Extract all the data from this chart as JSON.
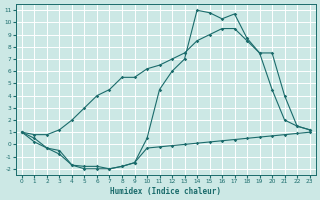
{
  "xlabel": "Humidex (Indice chaleur)",
  "background_color": "#cce8e5",
  "grid_color": "#ffffff",
  "line_color": "#1a6b6b",
  "xlim": [
    -0.5,
    23.5
  ],
  "ylim": [
    -2.5,
    11.5
  ],
  "xticks": [
    0,
    1,
    2,
    3,
    4,
    5,
    6,
    7,
    8,
    9,
    10,
    11,
    12,
    13,
    14,
    15,
    16,
    17,
    18,
    19,
    20,
    21,
    22,
    23
  ],
  "yticks": [
    -2,
    -1,
    0,
    1,
    2,
    3,
    4,
    5,
    6,
    7,
    8,
    9,
    10,
    11
  ],
  "line1_x": [
    0,
    1,
    2,
    3,
    4,
    5,
    6,
    7,
    8,
    9,
    10,
    11,
    12,
    13,
    14,
    15,
    16,
    17,
    18,
    19,
    20,
    21,
    22,
    23
  ],
  "line1_y": [
    1.0,
    0.2,
    -0.3,
    -0.5,
    -1.7,
    -1.8,
    -1.8,
    -2.0,
    -1.8,
    -1.5,
    -0.3,
    -0.2,
    -0.1,
    0.0,
    0.1,
    0.2,
    0.3,
    0.4,
    0.5,
    0.6,
    0.7,
    0.8,
    0.9,
    1.0
  ],
  "line2_x": [
    0,
    1,
    2,
    3,
    4,
    5,
    6,
    7,
    8,
    9,
    10,
    11,
    12,
    13,
    14,
    15,
    16,
    17,
    18,
    19,
    20,
    21,
    22,
    23
  ],
  "line2_y": [
    1.0,
    0.8,
    0.8,
    1.2,
    2.0,
    3.0,
    4.0,
    4.5,
    5.5,
    5.5,
    6.2,
    6.5,
    7.0,
    7.5,
    8.5,
    9.0,
    9.5,
    9.5,
    8.5,
    7.5,
    7.5,
    4.0,
    1.5,
    1.2
  ],
  "line3_x": [
    0,
    1,
    2,
    3,
    4,
    5,
    6,
    7,
    8,
    9,
    10,
    11,
    12,
    13,
    14,
    15,
    16,
    17,
    18,
    19,
    20,
    21,
    22,
    23
  ],
  "line3_y": [
    1.0,
    0.5,
    -0.3,
    -0.8,
    -1.7,
    -2.0,
    -2.0,
    -2.0,
    -1.8,
    -1.5,
    0.5,
    4.5,
    6.0,
    7.0,
    11.0,
    10.8,
    10.3,
    10.7,
    8.7,
    7.5,
    4.5,
    2.0,
    1.5,
    1.2
  ]
}
